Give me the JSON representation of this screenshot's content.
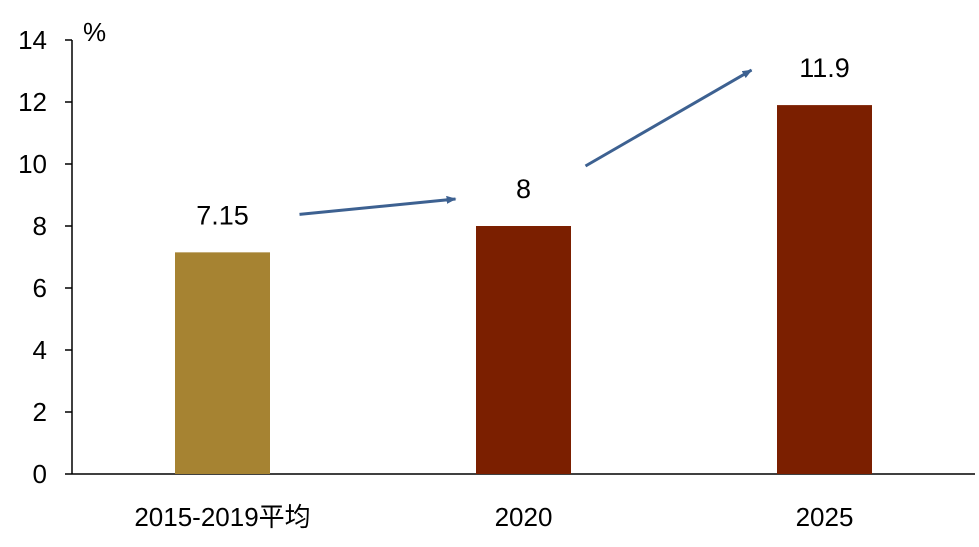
{
  "chart_data": {
    "type": "bar",
    "categories": [
      "2015-2019平均",
      "2020",
      "2025"
    ],
    "values": [
      7.15,
      8,
      11.9
    ],
    "data_labels": [
      "7.15",
      "8",
      "11.9"
    ],
    "bar_colors": [
      "#A68332",
      "#7B1F00",
      "#7B1F00"
    ],
    "unit_label": "%",
    "ylim": [
      0,
      14
    ],
    "yticks": [
      0,
      2,
      4,
      6,
      8,
      10,
      12,
      14
    ],
    "grid": false,
    "legend": "none",
    "annotations": [
      {
        "type": "arrow",
        "from_category": 0,
        "to_category": 1,
        "color": "#3D6191"
      },
      {
        "type": "arrow",
        "from_category": 1,
        "to_category": 2,
        "color": "#3D6191"
      }
    ]
  }
}
